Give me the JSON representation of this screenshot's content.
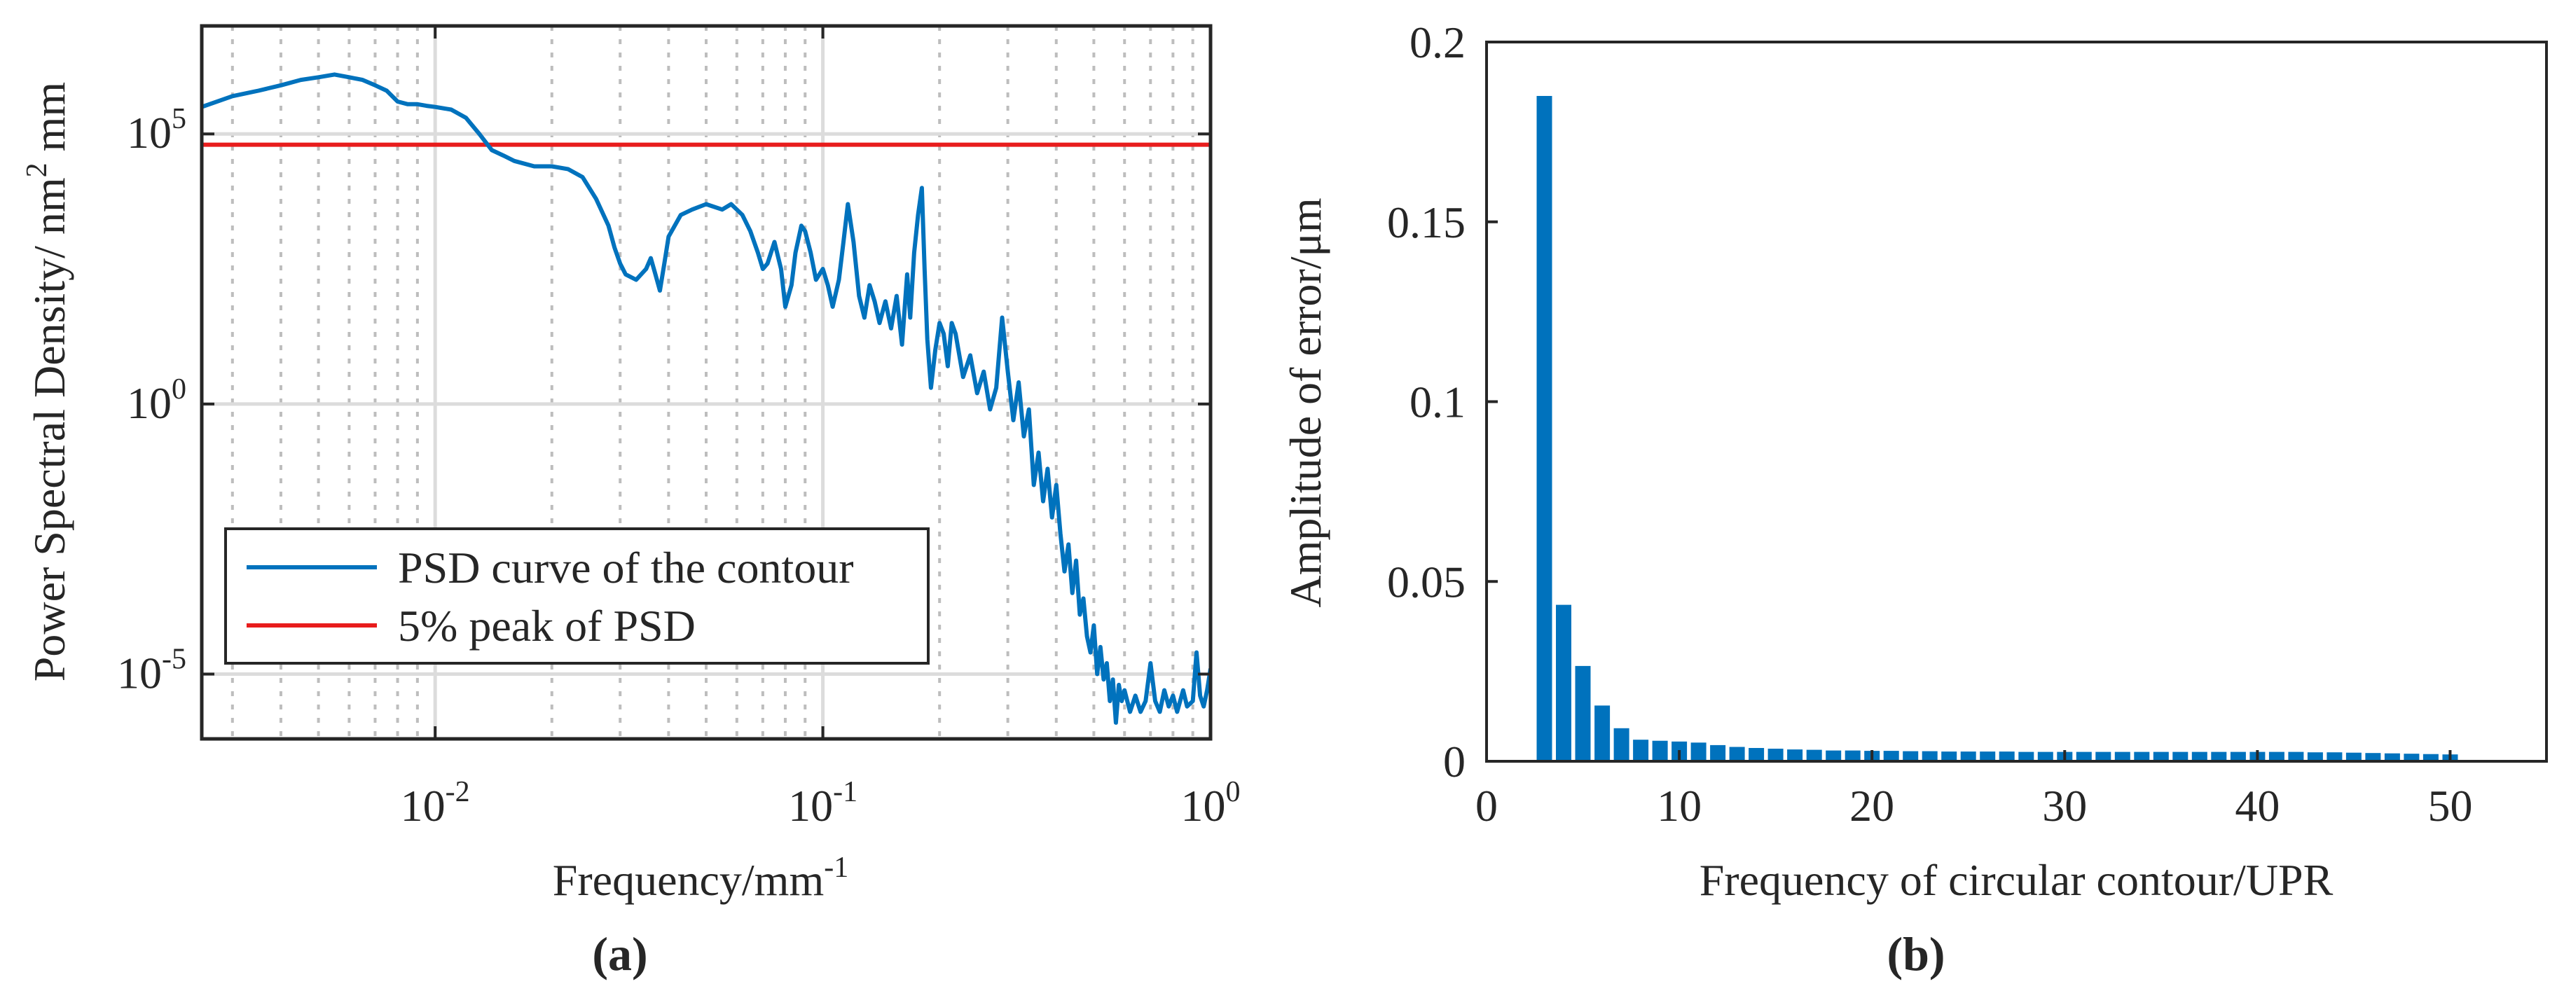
{
  "colors": {
    "psd": "#0072BD",
    "threshold": "#E81C1C",
    "bar": "#0072BD",
    "axis": "#262626",
    "grid": "#DCDCDC"
  },
  "panels": {
    "a_label": "(a)",
    "b_label": "(b)"
  },
  "chart_data": [
    {
      "type": "line",
      "panel": "a",
      "xscale": "log",
      "yscale": "log",
      "xlabel_main": "Frequency/mm",
      "xlabel_sup": "-1",
      "ylabel_part1": "Power Spectral Density/ nm",
      "ylabel_sup": "2",
      "ylabel_part2": " mm",
      "xlim": [
        0.0025,
        1
      ],
      "ylim_log10": [
        -6.2,
        7
      ],
      "xtick_labels": [
        {
          "base": "10",
          "exp": "-2",
          "value": 0.01
        },
        {
          "base": "10",
          "exp": "-1",
          "value": 0.1
        },
        {
          "base": "10",
          "exp": "0",
          "value": 1
        }
      ],
      "ytick_labels": [
        {
          "base": "10",
          "exp": "5",
          "log": 5
        },
        {
          "base": "10",
          "exp": "0",
          "log": 0
        },
        {
          "base": "10",
          "exp": "-5",
          "log": -5
        }
      ],
      "legend_position": "bottom-left",
      "series": [
        {
          "name": "PSD curve of the contour",
          "log10_points": [
            [
              0.0025,
              5.5
            ],
            [
              0.003,
              5.7
            ],
            [
              0.0035,
              5.8
            ],
            [
              0.004,
              5.9
            ],
            [
              0.0045,
              6.0
            ],
            [
              0.005,
              6.05
            ],
            [
              0.0055,
              6.1
            ],
            [
              0.006,
              6.05
            ],
            [
              0.0065,
              6.0
            ],
            [
              0.007,
              5.9
            ],
            [
              0.0075,
              5.8
            ],
            [
              0.008,
              5.6
            ],
            [
              0.0085,
              5.55
            ],
            [
              0.009,
              5.55
            ],
            [
              0.0095,
              5.52
            ],
            [
              0.01,
              5.5
            ],
            [
              0.011,
              5.45
            ],
            [
              0.012,
              5.3
            ],
            [
              0.013,
              5.0
            ],
            [
              0.014,
              4.7
            ],
            [
              0.015,
              4.6
            ],
            [
              0.016,
              4.5
            ],
            [
              0.018,
              4.4
            ],
            [
              0.02,
              4.4
            ],
            [
              0.022,
              4.35
            ],
            [
              0.024,
              4.2
            ],
            [
              0.026,
              3.8
            ],
            [
              0.028,
              3.3
            ],
            [
              0.029,
              2.9
            ],
            [
              0.03,
              2.6
            ],
            [
              0.031,
              2.4
            ],
            [
              0.033,
              2.3
            ],
            [
              0.035,
              2.5
            ],
            [
              0.036,
              2.7
            ],
            [
              0.037,
              2.4
            ],
            [
              0.038,
              2.1
            ],
            [
              0.039,
              2.6
            ],
            [
              0.04,
              3.1
            ],
            [
              0.043,
              3.5
            ],
            [
              0.046,
              3.6
            ],
            [
              0.05,
              3.7
            ],
            [
              0.055,
              3.6
            ],
            [
              0.058,
              3.7
            ],
            [
              0.062,
              3.5
            ],
            [
              0.065,
              3.2
            ],
            [
              0.068,
              2.8
            ],
            [
              0.07,
              2.5
            ],
            [
              0.072,
              2.6
            ],
            [
              0.075,
              3.0
            ],
            [
              0.078,
              2.5
            ],
            [
              0.08,
              1.8
            ],
            [
              0.083,
              2.2
            ],
            [
              0.085,
              2.8
            ],
            [
              0.088,
              3.3
            ],
            [
              0.09,
              3.2
            ],
            [
              0.093,
              2.8
            ],
            [
              0.096,
              2.3
            ],
            [
              0.1,
              2.5
            ],
            [
              0.103,
              2.2
            ],
            [
              0.106,
              1.8
            ],
            [
              0.11,
              2.3
            ],
            [
              0.113,
              3.0
            ],
            [
              0.116,
              3.7
            ],
            [
              0.12,
              3.0
            ],
            [
              0.124,
              2.0
            ],
            [
              0.128,
              1.6
            ],
            [
              0.132,
              2.2
            ],
            [
              0.136,
              1.9
            ],
            [
              0.14,
              1.5
            ],
            [
              0.145,
              1.9
            ],
            [
              0.15,
              1.4
            ],
            [
              0.155,
              2.0
            ],
            [
              0.16,
              1.1
            ],
            [
              0.165,
              2.4
            ],
            [
              0.168,
              1.6
            ],
            [
              0.172,
              2.8
            ],
            [
              0.176,
              3.5
            ],
            [
              0.18,
              4.0
            ],
            [
              0.183,
              2.5
            ],
            [
              0.186,
              1.2
            ],
            [
              0.19,
              0.3
            ],
            [
              0.195,
              1.0
            ],
            [
              0.2,
              1.5
            ],
            [
              0.205,
              1.3
            ],
            [
              0.21,
              0.7
            ],
            [
              0.215,
              1.5
            ],
            [
              0.22,
              1.3
            ],
            [
              0.23,
              0.5
            ],
            [
              0.24,
              0.9
            ],
            [
              0.25,
              0.2
            ],
            [
              0.26,
              0.6
            ],
            [
              0.27,
              -0.1
            ],
            [
              0.28,
              0.3
            ],
            [
              0.29,
              1.6
            ],
            [
              0.3,
              0.6
            ],
            [
              0.31,
              -0.3
            ],
            [
              0.32,
              0.4
            ],
            [
              0.33,
              -0.6
            ],
            [
              0.34,
              -0.1
            ],
            [
              0.35,
              -1.5
            ],
            [
              0.36,
              -0.9
            ],
            [
              0.37,
              -1.8
            ],
            [
              0.38,
              -1.2
            ],
            [
              0.39,
              -2.1
            ],
            [
              0.4,
              -1.5
            ],
            [
              0.41,
              -2.4
            ],
            [
              0.42,
              -3.1
            ],
            [
              0.43,
              -2.6
            ],
            [
              0.44,
              -3.5
            ],
            [
              0.45,
              -2.9
            ],
            [
              0.46,
              -3.9
            ],
            [
              0.47,
              -3.6
            ],
            [
              0.48,
              -4.3
            ],
            [
              0.49,
              -4.6
            ],
            [
              0.5,
              -4.1
            ],
            [
              0.51,
              -5.0
            ],
            [
              0.52,
              -4.5
            ],
            [
              0.53,
              -5.1
            ],
            [
              0.54,
              -4.8
            ],
            [
              0.55,
              -5.5
            ],
            [
              0.56,
              -5.1
            ],
            [
              0.57,
              -5.9
            ],
            [
              0.58,
              -5.2
            ],
            [
              0.59,
              -5.5
            ],
            [
              0.6,
              -5.3
            ],
            [
              0.62,
              -5.7
            ],
            [
              0.64,
              -5.4
            ],
            [
              0.66,
              -5.7
            ],
            [
              0.68,
              -5.5
            ],
            [
              0.7,
              -4.8
            ],
            [
              0.72,
              -5.5
            ],
            [
              0.74,
              -5.7
            ],
            [
              0.76,
              -5.3
            ],
            [
              0.78,
              -5.6
            ],
            [
              0.8,
              -5.4
            ],
            [
              0.82,
              -5.7
            ],
            [
              0.85,
              -5.3
            ],
            [
              0.87,
              -5.6
            ],
            [
              0.9,
              -5.5
            ],
            [
              0.92,
              -4.6
            ],
            [
              0.94,
              -5.4
            ],
            [
              0.96,
              -5.6
            ],
            [
              0.98,
              -5.3
            ],
            [
              1.0,
              -4.9
            ]
          ]
        },
        {
          "name": "5% peak of PSD",
          "log10_constant": 4.8
        }
      ]
    },
    {
      "type": "bar",
      "panel": "b",
      "xlabel": "Frequency of circular contour/UPR",
      "ylabel": "Amplitude of error/μm",
      "xlim": [
        0,
        55
      ],
      "ylim": [
        0,
        0.2
      ],
      "xtick_labels": [
        "0",
        "10",
        "20",
        "30",
        "40",
        "50"
      ],
      "ytick_labels": [
        "0",
        "0.05",
        "0.1",
        "0.15",
        "0.2"
      ],
      "x": [
        3,
        4,
        5,
        6,
        7,
        8,
        9,
        10,
        11,
        12,
        13,
        14,
        15,
        16,
        17,
        18,
        19,
        20,
        21,
        22,
        23,
        24,
        25,
        26,
        27,
        28,
        29,
        30,
        31,
        32,
        33,
        34,
        35,
        36,
        37,
        38,
        39,
        40,
        41,
        42,
        43,
        44,
        45,
        46,
        47,
        48,
        49,
        50
      ],
      "values": [
        0.185,
        0.0435,
        0.0265,
        0.0155,
        0.0092,
        0.006,
        0.0057,
        0.0055,
        0.0052,
        0.0045,
        0.004,
        0.0037,
        0.0035,
        0.0033,
        0.0032,
        0.003,
        0.003,
        0.0029,
        0.0029,
        0.0028,
        0.0028,
        0.0027,
        0.0027,
        0.0027,
        0.0027,
        0.0026,
        0.0026,
        0.0026,
        0.0026,
        0.0026,
        0.0026,
        0.0026,
        0.0026,
        0.0026,
        0.0026,
        0.0026,
        0.0026,
        0.0026,
        0.0026,
        0.0026,
        0.0025,
        0.0025,
        0.0024,
        0.0023,
        0.0022,
        0.0021,
        0.002,
        0.0019
      ]
    }
  ]
}
